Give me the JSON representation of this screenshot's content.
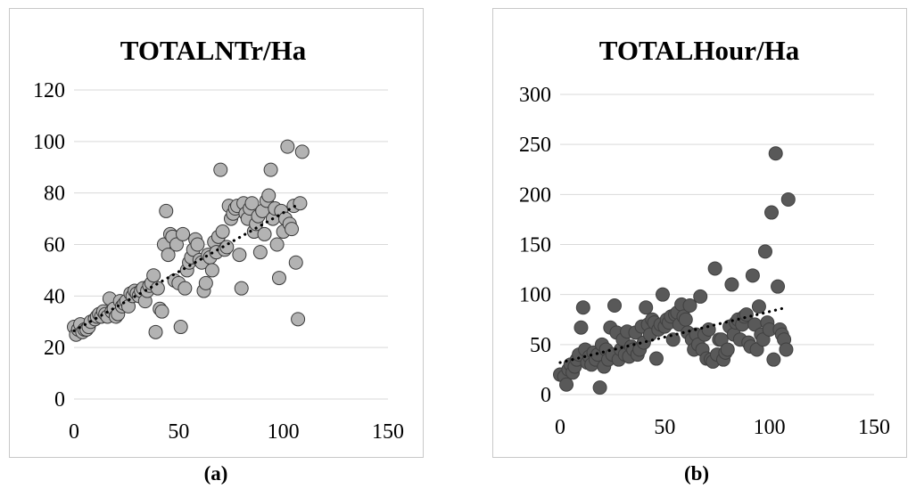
{
  "captions": [
    "(a)",
    "(b)"
  ],
  "chart_data": [
    {
      "type": "scatter",
      "title": "TOTALNTr/Ha",
      "xlabel": "",
      "ylabel": "",
      "xlim": [
        0,
        150
      ],
      "ylim": [
        0,
        120
      ],
      "xticks": [
        0,
        50,
        100,
        150
      ],
      "yticks": [
        0,
        20,
        40,
        60,
        80,
        100,
        120
      ],
      "grid": "horizontal",
      "legend": "none",
      "trendline": {
        "style": "dotted",
        "x": [
          0,
          108
        ],
        "y": [
          26.5,
          76
        ]
      },
      "marker_fill": "#b3b3b3",
      "marker_stroke": "#3a3a3a",
      "trend_color": "#000000",
      "points": [
        [
          0,
          28
        ],
        [
          1,
          25
        ],
        [
          2,
          27
        ],
        [
          3,
          29
        ],
        [
          4,
          26
        ],
        [
          5,
          27
        ],
        [
          6,
          27
        ],
        [
          7,
          28
        ],
        [
          8,
          30
        ],
        [
          10,
          31
        ],
        [
          11,
          32
        ],
        [
          12,
          33
        ],
        [
          13,
          32
        ],
        [
          14,
          34
        ],
        [
          15,
          33
        ],
        [
          16,
          32
        ],
        [
          17,
          39
        ],
        [
          18,
          34
        ],
        [
          19,
          35
        ],
        [
          20,
          32
        ],
        [
          21,
          33
        ],
        [
          22,
          38
        ],
        [
          23,
          36
        ],
        [
          24,
          37
        ],
        [
          25,
          38
        ],
        [
          26,
          36
        ],
        [
          27,
          41
        ],
        [
          28,
          40
        ],
        [
          29,
          42
        ],
        [
          30,
          41
        ],
        [
          31,
          40
        ],
        [
          32,
          42
        ],
        [
          33,
          43
        ],
        [
          34,
          38
        ],
        [
          35,
          42
        ],
        [
          36,
          44
        ],
        [
          37,
          45
        ],
        [
          38,
          48
        ],
        [
          39,
          26
        ],
        [
          40,
          43
        ],
        [
          41,
          35
        ],
        [
          42,
          34
        ],
        [
          43,
          60
        ],
        [
          44,
          73
        ],
        [
          45,
          56
        ],
        [
          46,
          64
        ],
        [
          47,
          63
        ],
        [
          48,
          46
        ],
        [
          49,
          60
        ],
        [
          50,
          45
        ],
        [
          51,
          28
        ],
        [
          52,
          64
        ],
        [
          53,
          43
        ],
        [
          54,
          50
        ],
        [
          55,
          53
        ],
        [
          56,
          55
        ],
        [
          57,
          58
        ],
        [
          58,
          62
        ],
        [
          59,
          60
        ],
        [
          60,
          54
        ],
        [
          61,
          53
        ],
        [
          62,
          42
        ],
        [
          63,
          45
        ],
        [
          64,
          56
        ],
        [
          65,
          55
        ],
        [
          66,
          50
        ],
        [
          67,
          61
        ],
        [
          68,
          57
        ],
        [
          69,
          63
        ],
        [
          70,
          89
        ],
        [
          71,
          65
        ],
        [
          72,
          58
        ],
        [
          73,
          59
        ],
        [
          74,
          75
        ],
        [
          75,
          70
        ],
        [
          76,
          72
        ],
        [
          77,
          74
        ],
        [
          78,
          75
        ],
        [
          79,
          56
        ],
        [
          80,
          43
        ],
        [
          81,
          76
        ],
        [
          82,
          72
        ],
        [
          83,
          70
        ],
        [
          84,
          74
        ],
        [
          85,
          76
        ],
        [
          86,
          65
        ],
        [
          87,
          68
        ],
        [
          88,
          71
        ],
        [
          89,
          57
        ],
        [
          90,
          73
        ],
        [
          91,
          64
        ],
        [
          92,
          77
        ],
        [
          93,
          79
        ],
        [
          94,
          89
        ],
        [
          95,
          70
        ],
        [
          96,
          74
        ],
        [
          97,
          60
        ],
        [
          98,
          47
        ],
        [
          99,
          73
        ],
        [
          100,
          65
        ],
        [
          101,
          70
        ],
        [
          102,
          98
        ],
        [
          103,
          68
        ],
        [
          104,
          66
        ],
        [
          105,
          75
        ],
        [
          106,
          53
        ],
        [
          107,
          31
        ],
        [
          108,
          76
        ],
        [
          109,
          96
        ]
      ]
    },
    {
      "type": "scatter",
      "title": "TOTALHour/Ha",
      "xlabel": "",
      "ylabel": "",
      "xlim": [
        0,
        150
      ],
      "ylim": [
        0,
        300
      ],
      "xticks": [
        0,
        50,
        100,
        150
      ],
      "yticks": [
        0,
        50,
        100,
        150,
        200,
        250,
        300
      ],
      "grid": "horizontal",
      "legend": "none",
      "trendline": {
        "style": "dotted",
        "x": [
          0,
          108
        ],
        "y": [
          32,
          87
        ]
      },
      "marker_fill": "#595959",
      "marker_stroke": "#404040",
      "trend_color": "#000000",
      "points": [
        [
          0,
          20
        ],
        [
          2,
          18
        ],
        [
          3,
          10
        ],
        [
          4,
          25
        ],
        [
          5,
          30
        ],
        [
          6,
          22
        ],
        [
          7,
          28
        ],
        [
          8,
          35
        ],
        [
          9,
          40
        ],
        [
          10,
          67
        ],
        [
          11,
          87
        ],
        [
          12,
          45
        ],
        [
          13,
          32
        ],
        [
          14,
          38
        ],
        [
          15,
          30
        ],
        [
          16,
          42
        ],
        [
          17,
          35
        ],
        [
          18,
          40
        ],
        [
          19,
          7
        ],
        [
          20,
          50
        ],
        [
          21,
          28
        ],
        [
          22,
          45
        ],
        [
          23,
          35
        ],
        [
          24,
          67
        ],
        [
          25,
          40
        ],
        [
          26,
          89
        ],
        [
          27,
          62
        ],
        [
          28,
          35
        ],
        [
          29,
          45
        ],
        [
          30,
          55
        ],
        [
          31,
          40
        ],
        [
          32,
          63
        ],
        [
          33,
          38
        ],
        [
          34,
          48
        ],
        [
          35,
          45
        ],
        [
          36,
          62
        ],
        [
          37,
          40
        ],
        [
          38,
          45
        ],
        [
          39,
          68
        ],
        [
          40,
          52
        ],
        [
          41,
          87
        ],
        [
          42,
          70
        ],
        [
          43,
          60
        ],
        [
          44,
          75
        ],
        [
          45,
          72
        ],
        [
          46,
          36
        ],
        [
          47,
          65
        ],
        [
          48,
          70
        ],
        [
          49,
          100
        ],
        [
          50,
          68
        ],
        [
          51,
          75
        ],
        [
          52,
          72
        ],
        [
          53,
          78
        ],
        [
          54,
          55
        ],
        [
          55,
          80
        ],
        [
          56,
          82
        ],
        [
          57,
          70
        ],
        [
          58,
          90
        ],
        [
          59,
          78
        ],
        [
          60,
          75
        ],
        [
          61,
          62
        ],
        [
          62,
          89
        ],
        [
          63,
          55
        ],
        [
          64,
          45
        ],
        [
          65,
          60
        ],
        [
          66,
          50
        ],
        [
          67,
          98
        ],
        [
          68,
          45
        ],
        [
          69,
          60
        ],
        [
          70,
          36
        ],
        [
          71,
          65
        ],
        [
          72,
          35
        ],
        [
          73,
          33
        ],
        [
          74,
          126
        ],
        [
          75,
          40
        ],
        [
          76,
          55
        ],
        [
          77,
          55
        ],
        [
          78,
          35
        ],
        [
          79,
          42
        ],
        [
          80,
          45
        ],
        [
          81,
          68
        ],
        [
          82,
          110
        ],
        [
          83,
          60
        ],
        [
          84,
          72
        ],
        [
          85,
          75
        ],
        [
          86,
          55
        ],
        [
          87,
          70
        ],
        [
          88,
          78
        ],
        [
          89,
          80
        ],
        [
          90,
          52
        ],
        [
          91,
          48
        ],
        [
          92,
          119
        ],
        [
          93,
          70
        ],
        [
          94,
          45
        ],
        [
          95,
          88
        ],
        [
          96,
          60
        ],
        [
          97,
          55
        ],
        [
          98,
          143
        ],
        [
          99,
          72
        ],
        [
          100,
          65
        ],
        [
          101,
          182
        ],
        [
          102,
          35
        ],
        [
          103,
          241
        ],
        [
          104,
          108
        ],
        [
          105,
          65
        ],
        [
          106,
          60
        ],
        [
          107,
          55
        ],
        [
          108,
          45
        ],
        [
          109,
          195
        ]
      ]
    }
  ]
}
